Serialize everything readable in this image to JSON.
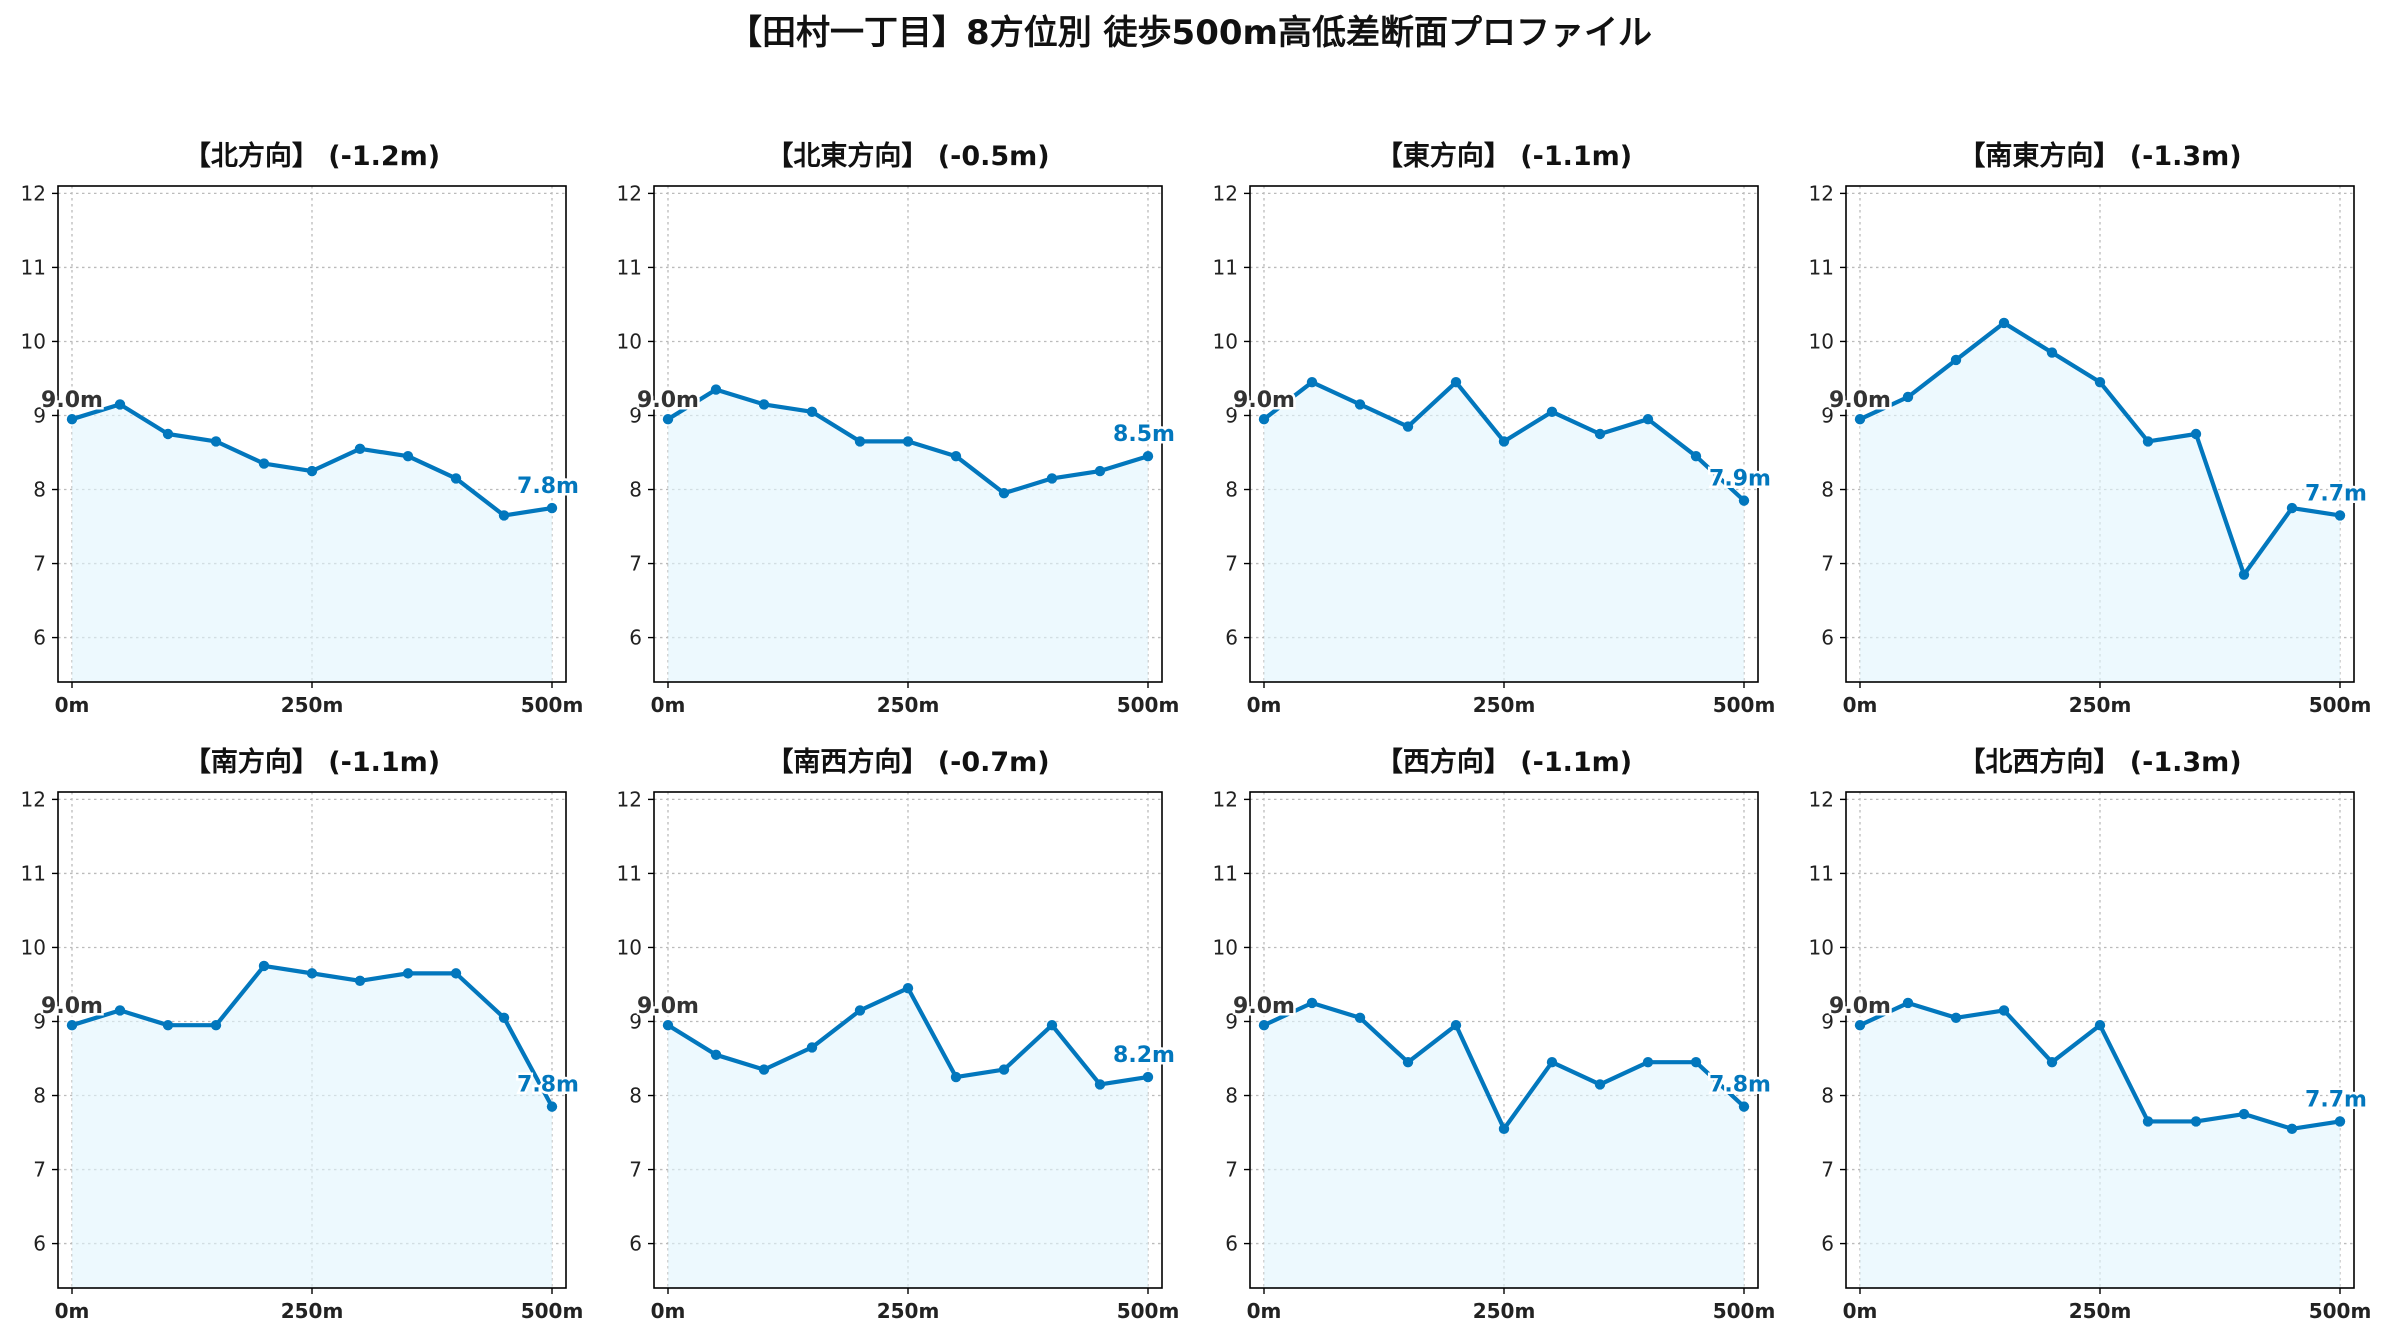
{
  "title": "【田村一丁目】8方位別 徒歩500m高低差断面プロファイル",
  "colors": {
    "line": "#0277bd",
    "fill": "#e1f5fe",
    "start_label": "#333333",
    "end_label": "#0277bd"
  },
  "chart_data": [
    {
      "type": "area",
      "title": "【北方向】 (-1.2m)",
      "x": [
        0,
        50,
        100,
        150,
        200,
        250,
        300,
        350,
        400,
        450,
        500
      ],
      "values": [
        8.95,
        9.15,
        8.75,
        8.65,
        8.35,
        8.25,
        8.55,
        8.45,
        8.15,
        7.65,
        7.75
      ],
      "start_label": "9.0m",
      "end_label": "7.8m",
      "xticks": [
        "0m",
        "250m",
        "500m"
      ],
      "yticks": [
        "6",
        "7",
        "8",
        "9",
        "10",
        "11",
        "12"
      ],
      "ylim": [
        5.4,
        12.1
      ],
      "grid": true
    },
    {
      "type": "area",
      "title": "【北東方向】 (-0.5m)",
      "x": [
        0,
        50,
        100,
        150,
        200,
        250,
        300,
        350,
        400,
        450,
        500
      ],
      "values": [
        8.95,
        9.35,
        9.15,
        9.05,
        8.65,
        8.65,
        8.45,
        7.95,
        8.15,
        8.25,
        8.45
      ],
      "start_label": "9.0m",
      "end_label": "8.5m",
      "xticks": [
        "0m",
        "250m",
        "500m"
      ],
      "yticks": [
        "6",
        "7",
        "8",
        "9",
        "10",
        "11",
        "12"
      ],
      "ylim": [
        5.4,
        12.1
      ],
      "grid": true
    },
    {
      "type": "area",
      "title": "【東方向】 (-1.1m)",
      "x": [
        0,
        50,
        100,
        150,
        200,
        250,
        300,
        350,
        400,
        450,
        500
      ],
      "values": [
        8.95,
        9.45,
        9.15,
        8.85,
        9.45,
        8.65,
        9.05,
        8.75,
        8.95,
        8.45,
        7.85
      ],
      "start_label": "9.0m",
      "end_label": "7.9m",
      "xticks": [
        "0m",
        "250m",
        "500m"
      ],
      "yticks": [
        "6",
        "7",
        "8",
        "9",
        "10",
        "11",
        "12"
      ],
      "ylim": [
        5.4,
        12.1
      ],
      "grid": true
    },
    {
      "type": "area",
      "title": "【南東方向】 (-1.3m)",
      "x": [
        0,
        50,
        100,
        150,
        200,
        250,
        300,
        350,
        400,
        450,
        500
      ],
      "values": [
        8.95,
        9.25,
        9.75,
        10.25,
        9.85,
        9.45,
        8.65,
        8.75,
        6.85,
        7.75,
        7.65
      ],
      "start_label": "9.0m",
      "end_label": "7.7m",
      "xticks": [
        "0m",
        "250m",
        "500m"
      ],
      "yticks": [
        "6",
        "7",
        "8",
        "9",
        "10",
        "11",
        "12"
      ],
      "ylim": [
        5.4,
        12.1
      ],
      "grid": true
    },
    {
      "type": "area",
      "title": "【南方向】 (-1.1m)",
      "x": [
        0,
        50,
        100,
        150,
        200,
        250,
        300,
        350,
        400,
        450,
        500
      ],
      "values": [
        8.95,
        9.15,
        8.95,
        8.95,
        9.75,
        9.65,
        9.55,
        9.65,
        9.65,
        9.05,
        7.85
      ],
      "start_label": "9.0m",
      "end_label": "7.8m",
      "xticks": [
        "0m",
        "250m",
        "500m"
      ],
      "yticks": [
        "6",
        "7",
        "8",
        "9",
        "10",
        "11",
        "12"
      ],
      "ylim": [
        5.4,
        12.1
      ],
      "grid": true
    },
    {
      "type": "area",
      "title": "【南西方向】 (-0.7m)",
      "x": [
        0,
        50,
        100,
        150,
        200,
        250,
        300,
        350,
        400,
        450,
        500
      ],
      "values": [
        8.95,
        8.55,
        8.35,
        8.65,
        9.15,
        9.45,
        8.25,
        8.35,
        8.95,
        8.15,
        8.25
      ],
      "start_label": "9.0m",
      "end_label": "8.2m",
      "xticks": [
        "0m",
        "250m",
        "500m"
      ],
      "yticks": [
        "6",
        "7",
        "8",
        "9",
        "10",
        "11",
        "12"
      ],
      "ylim": [
        5.4,
        12.1
      ],
      "grid": true
    },
    {
      "type": "area",
      "title": "【西方向】 (-1.1m)",
      "x": [
        0,
        50,
        100,
        150,
        200,
        250,
        300,
        350,
        400,
        450,
        500
      ],
      "values": [
        8.95,
        9.25,
        9.05,
        8.45,
        8.95,
        7.55,
        8.45,
        8.15,
        8.45,
        8.45,
        7.85
      ],
      "start_label": "9.0m",
      "end_label": "7.8m",
      "xticks": [
        "0m",
        "250m",
        "500m"
      ],
      "yticks": [
        "6",
        "7",
        "8",
        "9",
        "10",
        "11",
        "12"
      ],
      "ylim": [
        5.4,
        12.1
      ],
      "grid": true
    },
    {
      "type": "area",
      "title": "【北西方向】 (-1.3m)",
      "x": [
        0,
        50,
        100,
        150,
        200,
        250,
        300,
        350,
        400,
        450,
        500
      ],
      "values": [
        8.95,
        9.25,
        9.05,
        9.15,
        8.45,
        8.95,
        7.65,
        7.65,
        7.75,
        7.55,
        7.65
      ],
      "start_label": "9.0m",
      "end_label": "7.7m",
      "xticks": [
        "0m",
        "250m",
        "500m"
      ],
      "yticks": [
        "6",
        "7",
        "8",
        "9",
        "10",
        "11",
        "12"
      ],
      "ylim": [
        5.4,
        12.1
      ],
      "grid": true
    }
  ]
}
